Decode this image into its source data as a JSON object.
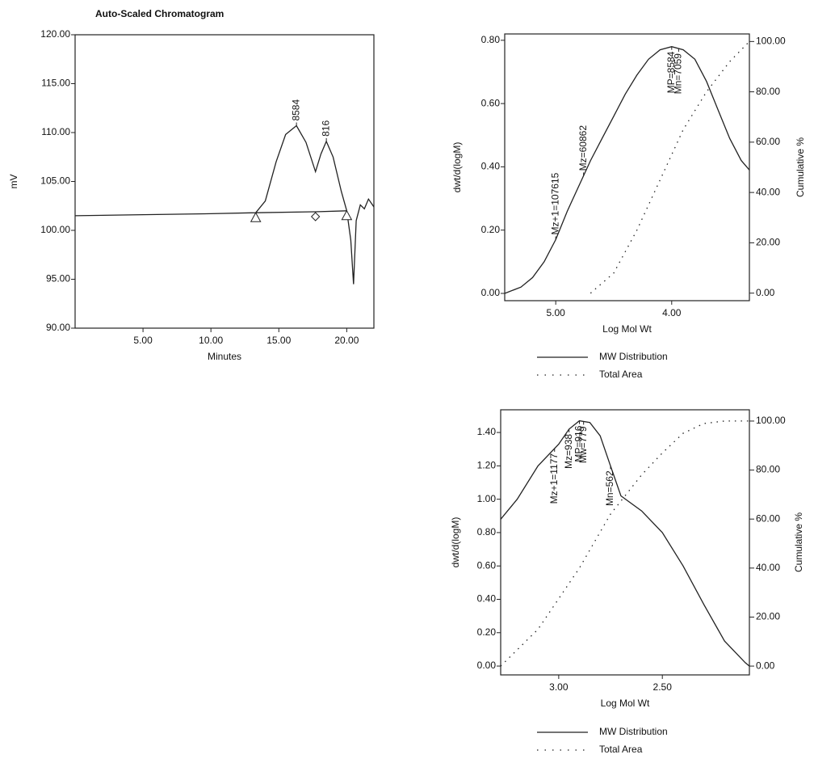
{
  "chart_data": [
    {
      "type": "line",
      "title": "Auto-Scaled Chromatogram",
      "xlabel": "Minutes",
      "ylabel": "mV",
      "xlim": [
        0,
        22
      ],
      "ylim": [
        90,
        120
      ],
      "xticks": [
        {
          "value": 5,
          "label": "5.00"
        },
        {
          "value": 10,
          "label": "10.00"
        },
        {
          "value": 15,
          "label": "15.00"
        },
        {
          "value": 20,
          "label": "20.00"
        }
      ],
      "yticks": [
        {
          "value": 90,
          "label": "90.00"
        },
        {
          "value": 95,
          "label": "95.00"
        },
        {
          "value": 100,
          "label": "100.00"
        },
        {
          "value": 105,
          "label": "105.00"
        },
        {
          "value": 110,
          "label": "110.00"
        },
        {
          "value": 115,
          "label": "115.00"
        },
        {
          "value": 120,
          "label": "120.00"
        }
      ],
      "series": [
        {
          "color": "#222222",
          "style": "solid",
          "x": [
            0,
            5,
            10,
            13.3,
            14,
            14.8,
            15.5,
            16.3,
            17,
            17.7,
            18.1,
            18.5,
            19,
            19.6,
            20,
            20.3,
            20.5,
            20.7,
            21,
            21.3,
            21.6,
            22
          ],
          "values": [
            101.5,
            101.6,
            101.7,
            101.8,
            103,
            107,
            109.8,
            110.7,
            109,
            106,
            107.8,
            109.1,
            107.5,
            104,
            102,
            99,
            94.5,
            101,
            102.6,
            102.2,
            103.2,
            102.4
          ]
        },
        {
          "color": "#222222",
          "style": "solid",
          "markers": [
            "triangle",
            "diamond",
            "triangle"
          ],
          "x": [
            13.3,
            17.7,
            20
          ],
          "values": [
            101.8,
            101.9,
            102.0
          ]
        }
      ],
      "annotations": [
        {
          "text": "8584",
          "x": 16.3,
          "side": "above"
        },
        {
          "text": "816",
          "x": 18.5,
          "side": "above"
        }
      ]
    },
    {
      "type": "line",
      "xlabel": "Log Mol Wt",
      "ylabel": "dwt/d(logM)",
      "y2label": "Cumulative %",
      "xlim": [
        5.44,
        3.33
      ],
      "ylim": [
        -0.023,
        0.82
      ],
      "y2lim": [
        -3,
        103
      ],
      "xticks": [
        {
          "value": 5,
          "label": "5.00"
        },
        {
          "value": 4,
          "label": "4.00"
        }
      ],
      "yticks": [
        {
          "value": 0,
          "label": "0.00"
        },
        {
          "value": 0.2,
          "label": "0.20"
        },
        {
          "value": 0.4,
          "label": "0.40"
        },
        {
          "value": 0.6,
          "label": "0.60"
        },
        {
          "value": 0.8,
          "label": "0.80"
        }
      ],
      "y2ticks": [
        {
          "value": 0,
          "label": "0.00"
        },
        {
          "value": 20,
          "label": "20.00"
        },
        {
          "value": 40,
          "label": "40.00"
        },
        {
          "value": 60,
          "label": "60.00"
        },
        {
          "value": 80,
          "label": "80.00"
        },
        {
          "value": 100,
          "label": "100.00"
        }
      ],
      "series": [
        {
          "name": "MW Distribution",
          "color": "#222222",
          "style": "solid",
          "x": [
            5.44,
            5.3,
            5.2,
            5.1,
            5.0,
            4.9,
            4.8,
            4.7,
            4.6,
            4.5,
            4.4,
            4.3,
            4.2,
            4.1,
            4.0,
            3.9,
            3.8,
            3.7,
            3.6,
            3.5,
            3.4,
            3.33
          ],
          "values": [
            0.0,
            0.02,
            0.05,
            0.1,
            0.17,
            0.26,
            0.34,
            0.42,
            0.49,
            0.56,
            0.63,
            0.69,
            0.74,
            0.77,
            0.78,
            0.77,
            0.74,
            0.67,
            0.58,
            0.49,
            0.42,
            0.39
          ]
        },
        {
          "name": "Total Area",
          "color": "#222222",
          "style": "dotted",
          "axis": "y2",
          "x": [
            4.7,
            4.5,
            4.3,
            4.1,
            3.9,
            3.7,
            3.5,
            3.33
          ],
          "values": [
            0,
            8,
            25,
            45,
            65,
            80,
            92,
            100
          ]
        }
      ],
      "annotations": [
        {
          "text": "Mz+1=107615",
          "x": 5.0,
          "side": "above"
        },
        {
          "text": "Mz=60862",
          "x": 4.76,
          "side": "above"
        },
        {
          "text": "MP=8584",
          "x": 4.0,
          "side": "below"
        },
        {
          "text": "Mn=7059",
          "x": 3.94,
          "side": "below"
        }
      ]
    },
    {
      "type": "line",
      "xlabel": "Log Mol Wt",
      "ylabel": "dwt/d(logM)",
      "y2label": "Cumulative %",
      "xlim": [
        3.28,
        2.08
      ],
      "ylim": [
        -0.053,
        1.536
      ],
      "y2lim": [
        -3.6,
        104.6
      ],
      "xticks": [
        {
          "value": 3,
          "label": "3.00"
        },
        {
          "value": 2.5,
          "label": "2.50"
        }
      ],
      "yticks": [
        {
          "value": 0,
          "label": "0.00"
        },
        {
          "value": 0.2,
          "label": "0.20"
        },
        {
          "value": 0.4,
          "label": "0.40"
        },
        {
          "value": 0.6,
          "label": "0.60"
        },
        {
          "value": 0.8,
          "label": "0.80"
        },
        {
          "value": 1,
          "label": "1.00"
        },
        {
          "value": 1.2,
          "label": "1.20"
        },
        {
          "value": 1.4,
          "label": "1.40"
        }
      ],
      "y2ticks": [
        {
          "value": 0,
          "label": "0.00"
        },
        {
          "value": 20,
          "label": "20.00"
        },
        {
          "value": 40,
          "label": "40.00"
        },
        {
          "value": 60,
          "label": "60.00"
        },
        {
          "value": 80,
          "label": "80.00"
        },
        {
          "value": 100,
          "label": "100.00"
        }
      ],
      "series": [
        {
          "name": "MW Distribution",
          "color": "#222222",
          "style": "solid",
          "x": [
            3.28,
            3.2,
            3.1,
            3.0,
            2.95,
            2.9,
            2.85,
            2.8,
            2.75,
            2.7,
            2.6,
            2.5,
            2.4,
            2.3,
            2.2,
            2.1,
            2.08
          ],
          "values": [
            0.88,
            1.0,
            1.2,
            1.33,
            1.42,
            1.47,
            1.46,
            1.38,
            1.2,
            1.02,
            0.93,
            0.8,
            0.6,
            0.37,
            0.15,
            0.02,
            0.0
          ]
        },
        {
          "name": "Total Area",
          "color": "#222222",
          "style": "dotted",
          "axis": "y2",
          "x": [
            3.28,
            3.1,
            2.9,
            2.75,
            2.6,
            2.5,
            2.4,
            2.3,
            2.2,
            2.08
          ],
          "values": [
            0,
            15,
            40,
            62,
            78,
            87,
            95,
            99,
            100,
            100
          ]
        }
      ],
      "annotations": [
        {
          "text": "Mz+1=1177",
          "x": 3.02,
          "side": "below"
        },
        {
          "text": "Mz=938",
          "x": 2.95,
          "side": "below"
        },
        {
          "text": "MP=916",
          "x": 2.9,
          "side": "below"
        },
        {
          "text": "Mw=779",
          "x": 2.88,
          "side": "below"
        },
        {
          "text": "Mn=562",
          "x": 2.75,
          "side": "below"
        }
      ]
    }
  ]
}
